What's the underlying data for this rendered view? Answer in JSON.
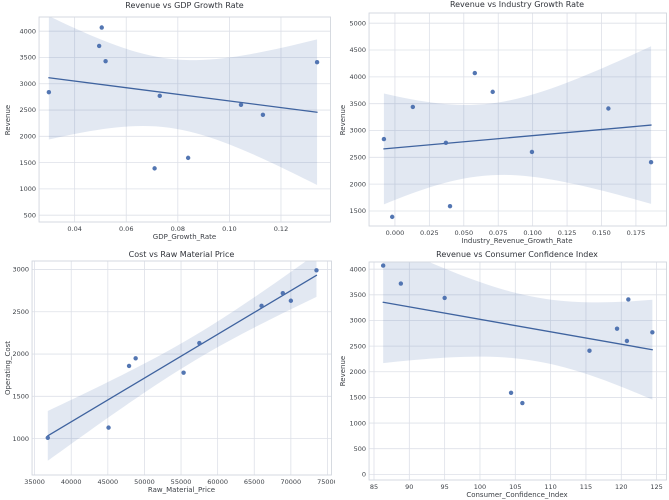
{
  "figure": {
    "colors": {
      "background": "#ffffff",
      "accent": "#4c72b0",
      "point_fill": "#4a6fae",
      "line_stroke": "#3f639f",
      "ci_band_fill": "#4c72b0",
      "ci_band_opacity": 0.16,
      "grid": "#dde0e8",
      "spine": "#d2d6de",
      "title_text": "#30333a",
      "tick_text": "#3d4147"
    }
  },
  "chart_data": [
    {
      "type": "scatter",
      "title": "Revenue vs GDP Growth Rate",
      "xlabel": "GDP_Growth_Rate",
      "ylabel": "Revenue",
      "regression": true,
      "ci_level": 95,
      "grid": true,
      "xlim": [
        0.0262,
        0.1392
      ],
      "ylim": [
        370,
        4270
      ],
      "xticks": [
        0.04,
        0.06,
        0.08,
        0.1,
        0.12
      ],
      "xtick_labels": [
        "0.04",
        "0.06",
        "0.08",
        "0.10",
        "0.12"
      ],
      "yticks": [
        500,
        1000,
        1500,
        2000,
        2500,
        3000,
        3500,
        4000
      ],
      "ytick_labels": [
        "500",
        "1000",
        "1500",
        "2000",
        "2500",
        "3000",
        "3500",
        "4000"
      ],
      "points": [
        [
          0.03,
          2840
        ],
        [
          0.0505,
          4070
        ],
        [
          0.0495,
          3720
        ],
        [
          0.052,
          3430
        ],
        [
          0.073,
          2770
        ],
        [
          0.071,
          1390
        ],
        [
          0.084,
          1590
        ],
        [
          0.1045,
          2600
        ],
        [
          0.113,
          2410
        ],
        [
          0.134,
          3410
        ]
      ]
    },
    {
      "type": "scatter",
      "title": "Revenue vs Industry Growth Rate",
      "xlabel": "Industry_Revenue_Growth_Rate",
      "ylabel": "Revenue",
      "regression": true,
      "ci_level": 95,
      "grid": true,
      "xlim": [
        -0.0188,
        0.1972
      ],
      "ylim": [
        1220,
        5190
      ],
      "xticks": [
        0.0,
        0.025,
        0.05,
        0.075,
        0.1,
        0.125,
        0.15,
        0.175
      ],
      "xtick_labels": [
        "0.000",
        "0.025",
        "0.050",
        "0.075",
        "0.100",
        "0.125",
        "0.150",
        "0.175"
      ],
      "yticks": [
        1500,
        2000,
        2500,
        3000,
        3500,
        4000,
        4500,
        5000
      ],
      "ytick_labels": [
        "1500",
        "2000",
        "2500",
        "3000",
        "3500",
        "4000",
        "4500",
        "5000"
      ],
      "points": [
        [
          -0.008,
          2840
        ],
        [
          -0.002,
          1390
        ],
        [
          0.013,
          3440
        ],
        [
          0.04,
          1590
        ],
        [
          0.037,
          2770
        ],
        [
          0.058,
          4070
        ],
        [
          0.071,
          3720
        ],
        [
          0.0995,
          2600
        ],
        [
          0.155,
          3410
        ],
        [
          0.186,
          2410
        ]
      ]
    },
    {
      "type": "scatter",
      "title": "Cost vs Raw Material Price",
      "xlabel": "Raw_Material_Price",
      "ylabel": "Operating_Cost",
      "regression": true,
      "ci_level": 95,
      "grid": true,
      "xlim": [
        34650,
        75550
      ],
      "ylim": [
        570,
        3100
      ],
      "xticks": [
        35000,
        40000,
        45000,
        50000,
        55000,
        60000,
        65000,
        70000,
        75000
      ],
      "xtick_labels": [
        "35000",
        "40000",
        "45000",
        "50000",
        "55000",
        "60000",
        "65000",
        "70000",
        "75000"
      ],
      "yticks": [
        1000,
        1500,
        2000,
        2500,
        3000
      ],
      "ytick_labels": [
        "1000",
        "1500",
        "2000",
        "2500",
        "3000"
      ],
      "points": [
        [
          36800,
          1010
        ],
        [
          45100,
          1130
        ],
        [
          47900,
          1860
        ],
        [
          48800,
          1950
        ],
        [
          55350,
          1780
        ],
        [
          57500,
          2130
        ],
        [
          66000,
          2570
        ],
        [
          68900,
          2720
        ],
        [
          70000,
          2630
        ],
        [
          73500,
          2990
        ]
      ]
    },
    {
      "type": "scatter",
      "title": "Revenue vs Consumer Confidence Index",
      "xlabel": "Consumer_Confidence_Index",
      "ylabel": "Revenue",
      "regression": true,
      "ci_level": 95,
      "grid": true,
      "xlim": [
        84.3,
        126.4
      ],
      "ylim": [
        -110,
        4140
      ],
      "xticks": [
        85,
        90,
        95,
        100,
        105,
        110,
        115,
        120,
        125
      ],
      "xtick_labels": [
        "85",
        "90",
        "95",
        "100",
        "105",
        "110",
        "115",
        "120",
        "125"
      ],
      "yticks": [
        0,
        500,
        1000,
        1500,
        2000,
        2500,
        3000,
        3500,
        4000
      ],
      "ytick_labels": [
        "0",
        "500",
        "1000",
        "1500",
        "2000",
        "2500",
        "3000",
        "3500",
        "4000"
      ],
      "points": [
        [
          86.3,
          4070
        ],
        [
          88.8,
          3720
        ],
        [
          95.0,
          3440
        ],
        [
          104.4,
          1590
        ],
        [
          106.0,
          1390
        ],
        [
          115.5,
          2410
        ],
        [
          119.4,
          2840
        ],
        [
          121.0,
          3410
        ],
        [
          120.8,
          2600
        ],
        [
          124.4,
          2770
        ]
      ]
    }
  ]
}
